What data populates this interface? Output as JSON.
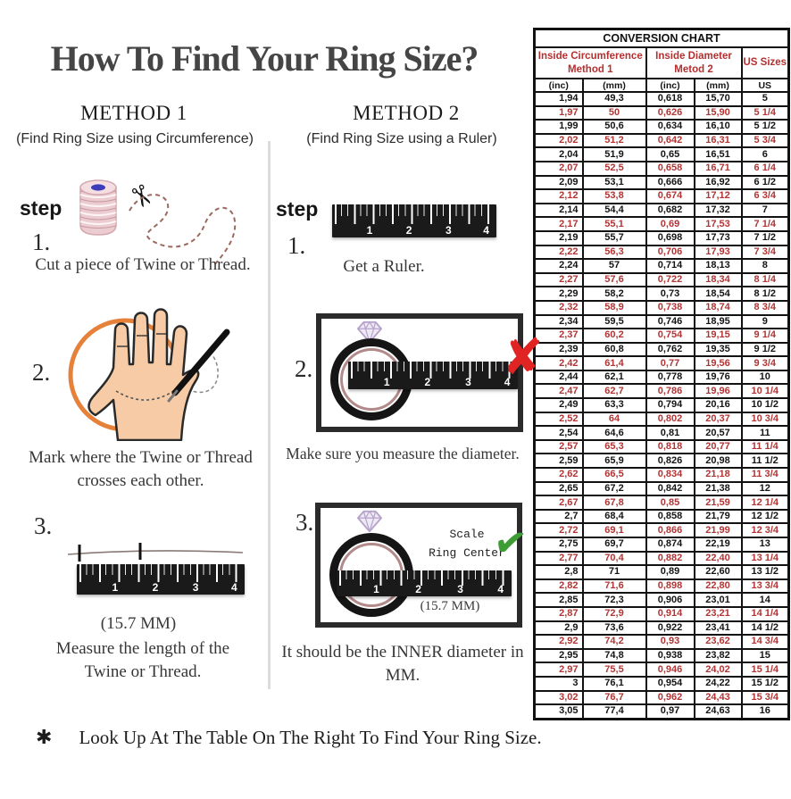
{
  "title": "How To Find Your Ring Size?",
  "ruler_numbers": [
    "1",
    "2",
    "3",
    "4"
  ],
  "methods": [
    {
      "name": "METHOD 1",
      "subtitle": "(Find Ring Size using Circumference)",
      "step_label": "step",
      "steps": [
        {
          "num": "1.",
          "caption": "Cut a piece of  Twine or Thread."
        },
        {
          "num": "2.",
          "caption": "Mark where the Twine or Thread crosses each other."
        },
        {
          "num": "3.",
          "caption": "Measure the length of the Twine or Thread.",
          "measurement": "(15.7 MM)"
        }
      ]
    },
    {
      "name": "METHOD 2",
      "subtitle": "(Find Ring Size using a Ruler)",
      "step_label": "step",
      "steps": [
        {
          "num": "1.",
          "caption": "Get a Ruler."
        },
        {
          "num": "2.",
          "caption": "Make sure you measure the diameter."
        },
        {
          "num": "3.",
          "caption": "It should be the INNER diameter in MM.",
          "scale_label": "Scale\nRing Center",
          "measurement": "(15.7 MM)"
        }
      ]
    }
  ],
  "marks": {
    "wrong": "✘",
    "right": "✔",
    "scissors": "✂"
  },
  "footer": {
    "bullet": "✱",
    "text": "Look Up At The Table On The Right To Find Your Ring Size."
  },
  "colors": {
    "row_red": "#b23434",
    "header_red": "#b52f2f",
    "accent_orange": "#e6813a",
    "check_green": "#3d9c34",
    "x_red": "#e02424"
  },
  "table": {
    "title": "CONVERSION CHART",
    "group_headers": [
      {
        "label": "Inside Circumference Method 1",
        "span": 2
      },
      {
        "label": "Inside Diameter Metod 2",
        "span": 2
      },
      {
        "label": "US Sizes",
        "span": 1
      }
    ],
    "unit_headers": [
      "(inc)",
      "(mm)",
      "(inc)",
      "(mm)",
      "US"
    ],
    "rows": [
      [
        "1,94",
        "49,3",
        "0,618",
        "15,70",
        "5"
      ],
      [
        "1,97",
        "50",
        "0,626",
        "15,90",
        "5 1/4"
      ],
      [
        "1,99",
        "50,6",
        "0,634",
        "16,10",
        "5 1/2"
      ],
      [
        "2,02",
        "51,2",
        "0,642",
        "16,31",
        "5 3/4"
      ],
      [
        "2,04",
        "51,9",
        "0,65",
        "16,51",
        "6"
      ],
      [
        "2,07",
        "52,5",
        "0,658",
        "16,71",
        "6 1/4"
      ],
      [
        "2,09",
        "53,1",
        "0,666",
        "16,92",
        "6 1/2"
      ],
      [
        "2,12",
        "53,8",
        "0,674",
        "17,12",
        "6 3/4"
      ],
      [
        "2,14",
        "54,4",
        "0,682",
        "17,32",
        "7"
      ],
      [
        "2,17",
        "55,1",
        "0,69",
        "17,53",
        "7 1/4"
      ],
      [
        "2,19",
        "55,7",
        "0,698",
        "17,73",
        "7 1/2"
      ],
      [
        "2,22",
        "56,3",
        "0,706",
        "17,93",
        "7 3/4"
      ],
      [
        "2,24",
        "57",
        "0,714",
        "18,13",
        "8"
      ],
      [
        "2,27",
        "57,6",
        "0,722",
        "18,34",
        "8 1/4"
      ],
      [
        "2,29",
        "58,2",
        "0,73",
        "18,54",
        "8 1/2"
      ],
      [
        "2,32",
        "58,9",
        "0,738",
        "18,74",
        "8 3/4"
      ],
      [
        "2,34",
        "59,5",
        "0,746",
        "18,95",
        "9"
      ],
      [
        "2,37",
        "60,2",
        "0,754",
        "19,15",
        "9 1/4"
      ],
      [
        "2,39",
        "60,8",
        "0,762",
        "19,35",
        "9 1/2"
      ],
      [
        "2,42",
        "61,4",
        "0,77",
        "19,56",
        "9 3/4"
      ],
      [
        "2,44",
        "62,1",
        "0,778",
        "19,76",
        "10"
      ],
      [
        "2,47",
        "62,7",
        "0,786",
        "19,96",
        "10 1/4"
      ],
      [
        "2,49",
        "63,3",
        "0,794",
        "20,16",
        "10 1/2"
      ],
      [
        "2,52",
        "64",
        "0,802",
        "20,37",
        "10 3/4"
      ],
      [
        "2,54",
        "64,6",
        "0,81",
        "20,57",
        "11"
      ],
      [
        "2,57",
        "65,3",
        "0,818",
        "20,77",
        "11 1/4"
      ],
      [
        "2,59",
        "65,9",
        "0,826",
        "20,98",
        "11 1/2"
      ],
      [
        "2,62",
        "66,5",
        "0,834",
        "21,18",
        "11 3/4"
      ],
      [
        "2,65",
        "67,2",
        "0,842",
        "21,38",
        "12"
      ],
      [
        "2,67",
        "67,8",
        "0,85",
        "21,59",
        "12 1/4"
      ],
      [
        "2,7",
        "68,4",
        "0,858",
        "21,79",
        "12 1/2"
      ],
      [
        "2,72",
        "69,1",
        "0,866",
        "21,99",
        "12 3/4"
      ],
      [
        "2,75",
        "69,7",
        "0,874",
        "22,19",
        "13"
      ],
      [
        "2,77",
        "70,4",
        "0,882",
        "22,40",
        "13 1/4"
      ],
      [
        "2,8",
        "71",
        "0,89",
        "22,60",
        "13 1/2"
      ],
      [
        "2,82",
        "71,6",
        "0,898",
        "22,80",
        "13 3/4"
      ],
      [
        "2,85",
        "72,3",
        "0,906",
        "23,01",
        "14"
      ],
      [
        "2,87",
        "72,9",
        "0,914",
        "23,21",
        "14 1/4"
      ],
      [
        "2,9",
        "73,6",
        "0,922",
        "23,41",
        "14 1/2"
      ],
      [
        "2,92",
        "74,2",
        "0,93",
        "23,62",
        "14 3/4"
      ],
      [
        "2,95",
        "74,8",
        "0,938",
        "23,82",
        "15"
      ],
      [
        "2,97",
        "75,5",
        "0,946",
        "24,02",
        "15 1/4"
      ],
      [
        "3",
        "76,1",
        "0,954",
        "24,22",
        "15 1/2"
      ],
      [
        "3,02",
        "76,7",
        "0,962",
        "24,43",
        "15 3/4"
      ],
      [
        "3,05",
        "77,4",
        "0,97",
        "24,63",
        "16"
      ]
    ]
  }
}
